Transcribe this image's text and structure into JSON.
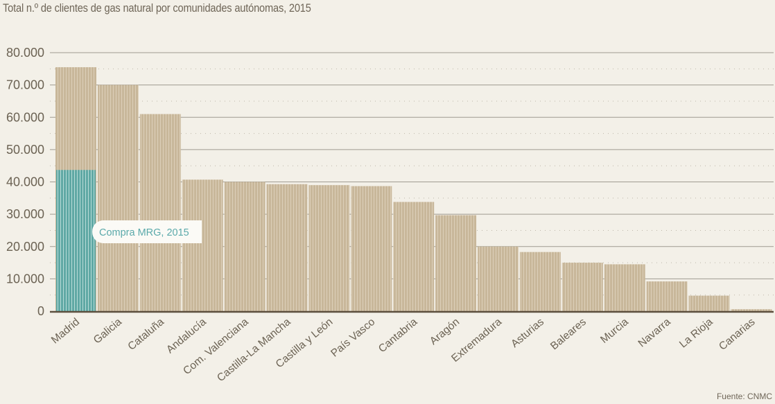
{
  "title": "Total n.º de clientes de gas natural por comunidades autónomas, 2015",
  "source": "Fuente: CNMC",
  "colors": {
    "bar": "#c8b79a",
    "bar_stripe": "#ffffff",
    "highlight": "#5fa8a4",
    "grid": "#9f9a90",
    "axis": "#5c4f3e"
  },
  "chart_data": {
    "type": "bar",
    "title": "Total n.º de clientes de gas natural por comunidades autónomas, 2015",
    "xlabel": "",
    "ylabel": "",
    "ylim": [
      0,
      80000
    ],
    "yticks": [
      0,
      10000,
      20000,
      30000,
      40000,
      50000,
      60000,
      70000,
      80000
    ],
    "ytick_labels": [
      "0",
      "10.000",
      "20.000",
      "30.000",
      "40.000",
      "50.000",
      "60.000",
      "70.000",
      "80.000"
    ],
    "grid": true,
    "categories": [
      "Madrid",
      "Galicia",
      "Cataluña",
      "Andalucía",
      "Com. Valenciana",
      "Castilla-La Mancha",
      "Castilla y León",
      "País Vasco",
      "Cantabria",
      "Aragón",
      "Extremadura",
      "Asturias",
      "Baleares",
      "Murcia",
      "Navarra",
      "La Rioja",
      "Canarias"
    ],
    "values": [
      75500,
      70000,
      61000,
      40700,
      40000,
      39300,
      39000,
      38700,
      33800,
      29700,
      20000,
      18300,
      15000,
      14500,
      9200,
      4800,
      600
    ],
    "highlight": {
      "category": "Madrid",
      "value": 43700,
      "label": "Compra MRG, 2015"
    }
  }
}
